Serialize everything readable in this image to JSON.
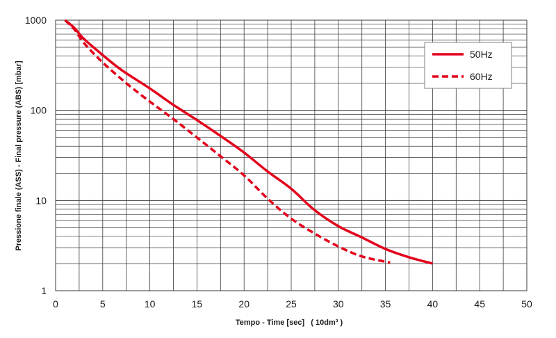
{
  "chart_data": {
    "type": "line",
    "xlabel": "Tempo - Time [sec]   ( 10dm³ )",
    "ylabel": "Pressione finale (ASS) - Final pressure (ABS) [mbar]",
    "xlim": [
      0,
      50
    ],
    "ylim": [
      1,
      1000
    ],
    "yscale": "log",
    "grid": true,
    "legend_position": "top-right",
    "x_ticks": [
      "0",
      "5",
      "10",
      "15",
      "20",
      "25",
      "30",
      "35",
      "40",
      "45",
      "50"
    ],
    "y_ticks": [
      "1",
      "10",
      "100",
      "1000"
    ],
    "series": [
      {
        "name": "50Hz",
        "color": "#e3001b",
        "style": "solid",
        "points": [
          [
            1,
            1000
          ],
          [
            2,
            820
          ],
          [
            3,
            620
          ],
          [
            5,
            410
          ],
          [
            7,
            280
          ],
          [
            10,
            175
          ],
          [
            12.5,
            115
          ],
          [
            15,
            78
          ],
          [
            17.5,
            52
          ],
          [
            20,
            34
          ],
          [
            22.5,
            21
          ],
          [
            25,
            13.5
          ],
          [
            27.5,
            7.8
          ],
          [
            30,
            5.2
          ],
          [
            32.5,
            3.9
          ],
          [
            35,
            2.9
          ],
          [
            37.5,
            2.35
          ],
          [
            40,
            2.0
          ]
        ]
      },
      {
        "name": "60Hz",
        "color": "#e3001b",
        "style": "dashed",
        "points": [
          [
            1,
            1000
          ],
          [
            2,
            790
          ],
          [
            3,
            560
          ],
          [
            5,
            340
          ],
          [
            7.5,
            200
          ],
          [
            10,
            125
          ],
          [
            12.5,
            80
          ],
          [
            15,
            50
          ],
          [
            17.5,
            31
          ],
          [
            20,
            19
          ],
          [
            22.5,
            10.5
          ],
          [
            25,
            6.3
          ],
          [
            27.5,
            4.3
          ],
          [
            30,
            3.1
          ],
          [
            32.5,
            2.4
          ],
          [
            35.5,
            2.05
          ]
        ]
      }
    ]
  }
}
